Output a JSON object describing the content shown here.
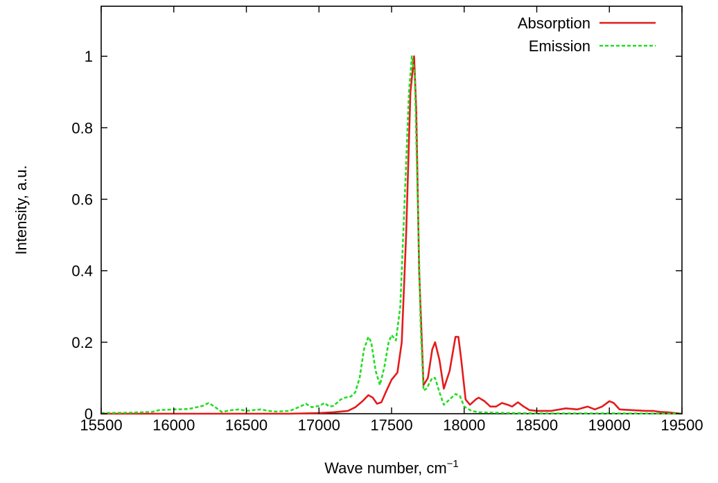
{
  "chart_data": {
    "type": "line",
    "title": "",
    "xlabel": "Wave number, cm",
    "xlabel_superscript": "−1",
    "ylabel": "Intensity, a.u.",
    "xlim": [
      15500,
      19500
    ],
    "ylim": [
      0,
      1.14
    ],
    "xticks": [
      15500,
      16000,
      16500,
      17000,
      17500,
      18000,
      18500,
      19000,
      19500
    ],
    "xtick_labels": [
      "15500",
      "16000",
      "16500",
      "17000",
      "17500",
      "18000",
      "18500",
      "19000",
      "19500"
    ],
    "yticks": [
      0,
      0.2,
      0.4,
      0.6,
      0.8,
      1
    ],
    "ytick_labels": [
      "0",
      "0.2",
      "0.4",
      "0.6",
      "0.8",
      "1"
    ],
    "grid": false,
    "legend_position": "top-right",
    "series": [
      {
        "name": "Absorption",
        "color": "#e41a1c",
        "style": "solid",
        "points": [
          [
            15500,
            0
          ],
          [
            16800,
            0
          ],
          [
            17000,
            0.002
          ],
          [
            17100,
            0.004
          ],
          [
            17150,
            0.006
          ],
          [
            17200,
            0.008
          ],
          [
            17250,
            0.018
          ],
          [
            17300,
            0.035
          ],
          [
            17340,
            0.052
          ],
          [
            17370,
            0.045
          ],
          [
            17400,
            0.028
          ],
          [
            17430,
            0.032
          ],
          [
            17460,
            0.06
          ],
          [
            17500,
            0.095
          ],
          [
            17540,
            0.115
          ],
          [
            17570,
            0.2
          ],
          [
            17600,
            0.5
          ],
          [
            17630,
            0.9
          ],
          [
            17655,
            1.0
          ],
          [
            17670,
            0.85
          ],
          [
            17690,
            0.4
          ],
          [
            17720,
            0.08
          ],
          [
            17750,
            0.1
          ],
          [
            17780,
            0.18
          ],
          [
            17800,
            0.2
          ],
          [
            17830,
            0.15
          ],
          [
            17860,
            0.07
          ],
          [
            17900,
            0.12
          ],
          [
            17940,
            0.215
          ],
          [
            17960,
            0.215
          ],
          [
            17980,
            0.15
          ],
          [
            18010,
            0.04
          ],
          [
            18040,
            0.025
          ],
          [
            18080,
            0.04
          ],
          [
            18100,
            0.045
          ],
          [
            18140,
            0.035
          ],
          [
            18180,
            0.02
          ],
          [
            18220,
            0.02
          ],
          [
            18260,
            0.03
          ],
          [
            18300,
            0.025
          ],
          [
            18330,
            0.02
          ],
          [
            18370,
            0.032
          ],
          [
            18410,
            0.02
          ],
          [
            18450,
            0.01
          ],
          [
            18500,
            0.008
          ],
          [
            18600,
            0.008
          ],
          [
            18700,
            0.015
          ],
          [
            18780,
            0.012
          ],
          [
            18850,
            0.02
          ],
          [
            18900,
            0.012
          ],
          [
            18950,
            0.02
          ],
          [
            19000,
            0.035
          ],
          [
            19030,
            0.03
          ],
          [
            19070,
            0.012
          ],
          [
            19150,
            0.01
          ],
          [
            19250,
            0.008
          ],
          [
            19300,
            0.008
          ],
          [
            19350,
            0.005
          ],
          [
            19400,
            0.004
          ],
          [
            19450,
            0.002
          ],
          [
            19500,
            0
          ]
        ]
      },
      {
        "name": "Emission",
        "color": "#22dd22",
        "style": "dashed",
        "points": [
          [
            15500,
            0.002
          ],
          [
            15700,
            0.003
          ],
          [
            15850,
            0.005
          ],
          [
            15900,
            0.01
          ],
          [
            16000,
            0.012
          ],
          [
            16100,
            0.013
          ],
          [
            16200,
            0.022
          ],
          [
            16240,
            0.03
          ],
          [
            16280,
            0.02
          ],
          [
            16330,
            0.005
          ],
          [
            16400,
            0.01
          ],
          [
            16450,
            0.012
          ],
          [
            16500,
            0.008
          ],
          [
            16550,
            0.01
          ],
          [
            16600,
            0.012
          ],
          [
            16650,
            0.008
          ],
          [
            16700,
            0.006
          ],
          [
            16800,
            0.008
          ],
          [
            16870,
            0.02
          ],
          [
            16910,
            0.028
          ],
          [
            16950,
            0.018
          ],
          [
            17000,
            0.022
          ],
          [
            17040,
            0.03
          ],
          [
            17070,
            0.02
          ],
          [
            17100,
            0.022
          ],
          [
            17150,
            0.04
          ],
          [
            17180,
            0.045
          ],
          [
            17220,
            0.048
          ],
          [
            17250,
            0.06
          ],
          [
            17280,
            0.1
          ],
          [
            17310,
            0.18
          ],
          [
            17340,
            0.215
          ],
          [
            17360,
            0.2
          ],
          [
            17390,
            0.12
          ],
          [
            17420,
            0.08
          ],
          [
            17450,
            0.13
          ],
          [
            17480,
            0.2
          ],
          [
            17500,
            0.22
          ],
          [
            17530,
            0.205
          ],
          [
            17560,
            0.3
          ],
          [
            17590,
            0.6
          ],
          [
            17620,
            0.9
          ],
          [
            17640,
            1.0
          ],
          [
            17660,
            0.95
          ],
          [
            17680,
            0.6
          ],
          [
            17700,
            0.25
          ],
          [
            17720,
            0.065
          ],
          [
            17740,
            0.07
          ],
          [
            17780,
            0.1
          ],
          [
            17800,
            0.1
          ],
          [
            17830,
            0.06
          ],
          [
            17860,
            0.025
          ],
          [
            17900,
            0.04
          ],
          [
            17940,
            0.055
          ],
          [
            17970,
            0.05
          ],
          [
            18000,
            0.02
          ],
          [
            18050,
            0.008
          ],
          [
            18100,
            0.004
          ],
          [
            18200,
            0.003
          ],
          [
            18300,
            0.002
          ],
          [
            18500,
            0.001
          ],
          [
            19000,
            0.001
          ],
          [
            19500,
            0
          ]
        ]
      }
    ]
  }
}
